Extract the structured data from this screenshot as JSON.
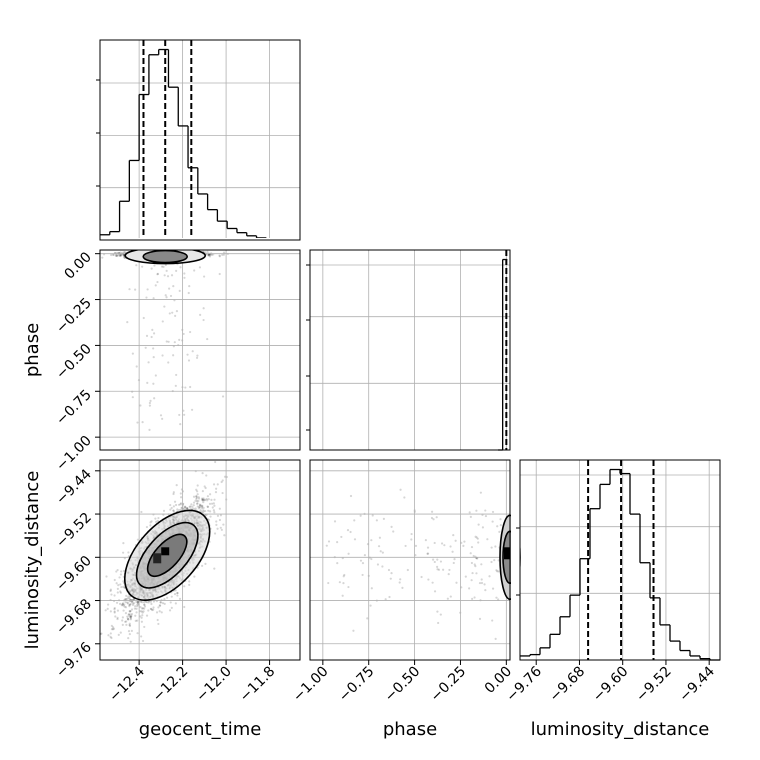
{
  "chart_data": {
    "type": "corner",
    "parameters": [
      "geocent_time",
      "phase",
      "luminosity_distance"
    ],
    "axis_labels": {
      "bottom": [
        "geocent_time",
        "phase",
        "luminosity_distance"
      ],
      "left": [
        "phase",
        "luminosity_distance"
      ]
    },
    "ranges": {
      "geocent_time": [
        -12.58,
        -11.66
      ],
      "phase": [
        -1.07,
        0.02
      ],
      "luminosity_distance": [
        -9.79,
        -9.42
      ]
    },
    "ticks": {
      "geocent_time": [
        {
          "value": -12.4,
          "label": "−12.4"
        },
        {
          "value": -12.2,
          "label": "−12.2"
        },
        {
          "value": -12.0,
          "label": "−12.0"
        },
        {
          "value": -11.8,
          "label": "−11.8"
        }
      ],
      "phase": [
        {
          "value": -1.0,
          "label": "−1.00"
        },
        {
          "value": -0.75,
          "label": "−0.75"
        },
        {
          "value": -0.5,
          "label": "−0.50"
        },
        {
          "value": -0.25,
          "label": "−0.25"
        },
        {
          "value": 0.0,
          "label": "0.00"
        }
      ],
      "luminosity_distance": [
        {
          "value": -9.76,
          "label": "−9.76"
        },
        {
          "value": -9.68,
          "label": "−9.68"
        },
        {
          "value": -9.6,
          "label": "−9.60"
        },
        {
          "value": -9.52,
          "label": "−9.52"
        },
        {
          "value": -9.44,
          "label": "−9.44"
        }
      ]
    },
    "histograms": {
      "geocent_time": {
        "bin_edges": [
          -12.58,
          -12.535,
          -12.49,
          -12.445,
          -12.4,
          -12.355,
          -12.31,
          -12.265,
          -12.22,
          -12.175,
          -12.13,
          -12.085,
          -12.04,
          -11.995,
          -11.95,
          -11.905,
          -11.86,
          -11.815,
          -11.77,
          -11.725,
          -11.68
        ],
        "counts": [
          5,
          8,
          37,
          76,
          139,
          177,
          182,
          146,
          109,
          69,
          44,
          29,
          18,
          11,
          7,
          4,
          2,
          1,
          0,
          0
        ],
        "quantiles": [
          -12.38,
          -12.28,
          -12.16
        ]
      },
      "phase": {
        "bin_edges": [
          -0.045,
          -0.02,
          0.005
        ],
        "counts": [
          0,
          100
        ],
        "quantiles": [
          0.0
        ]
      },
      "luminosity_distance": {
        "bin_edges": [
          -9.79,
          -9.7715,
          -9.753,
          -9.7345,
          -9.716,
          -9.6975,
          -9.679,
          -9.6605,
          -9.642,
          -9.6235,
          -9.605,
          -9.5865,
          -9.568,
          -9.5495,
          -9.531,
          -9.5125,
          -9.494,
          -9.4755,
          -9.457,
          -9.4385,
          -9.42
        ],
        "counts": [
          3,
          4,
          9,
          19,
          32,
          48,
          75,
          112,
          130,
          141,
          138,
          108,
          72,
          46,
          26,
          14,
          7,
          3,
          1,
          0
        ],
        "quantiles": [
          -9.664,
          -9.603,
          -9.543
        ]
      }
    },
    "joint": {
      "geocent_time_vs_phase": {
        "center": [
          -12.28,
          -0.005
        ],
        "spread": [
          0.09,
          0.008
        ],
        "outlier_phase_range": [
          -1.0,
          0.0
        ]
      },
      "geocent_time_vs_luminosity_distance": {
        "center": [
          -12.28,
          -9.6
        ],
        "spread": [
          0.09,
          0.05
        ],
        "correlation": 0.72
      },
      "phase_vs_luminosity_distance": {
        "center": [
          -0.005,
          -9.6
        ],
        "spread": [
          0.008,
          0.05
        ]
      }
    },
    "grid": true
  }
}
